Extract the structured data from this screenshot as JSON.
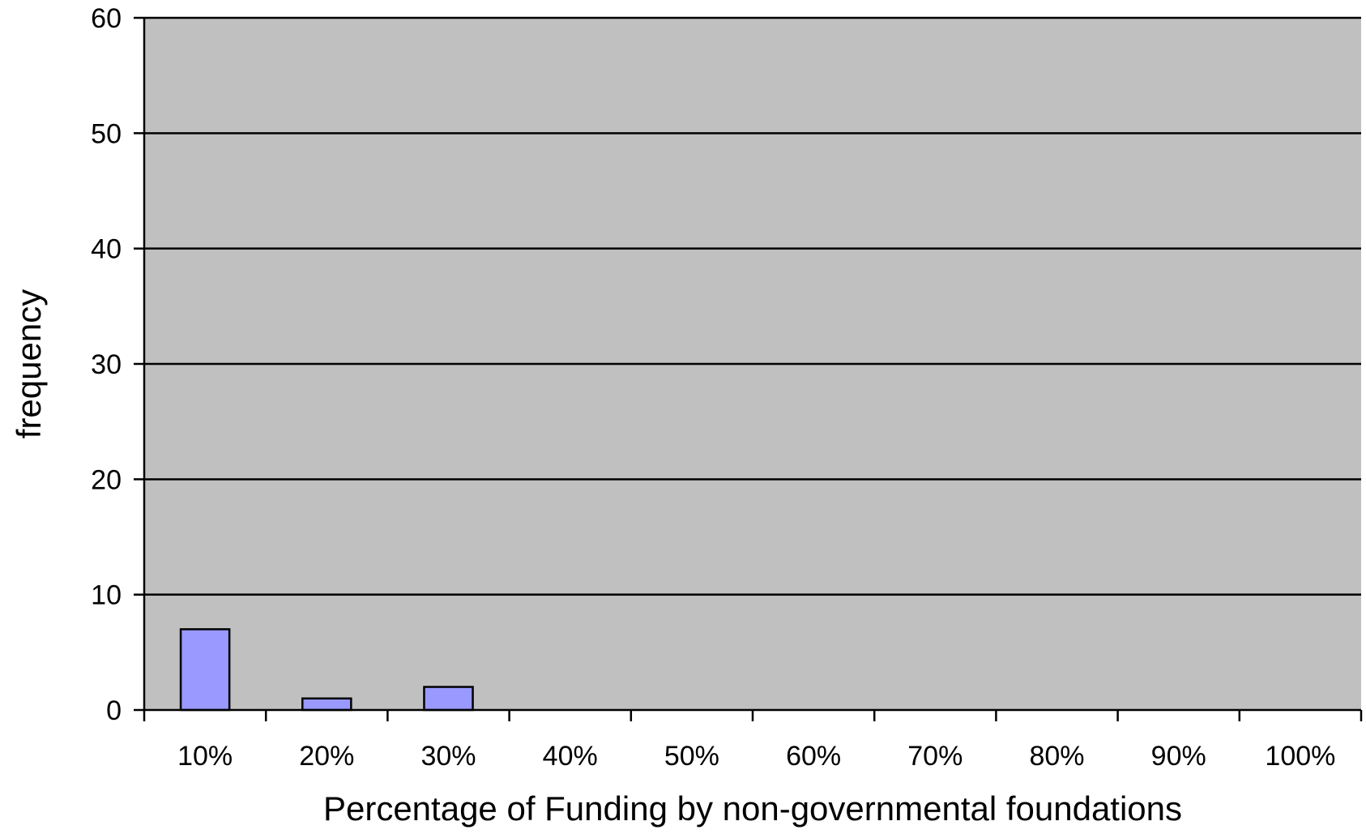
{
  "chart_data": {
    "type": "bar",
    "title": "",
    "xlabel": "Percentage of Funding by non-governmental foundations",
    "ylabel": "frequency",
    "categories": [
      "10%",
      "20%",
      "30%",
      "40%",
      "50%",
      "60%",
      "70%",
      "80%",
      "90%",
      "100%"
    ],
    "values": [
      7,
      1,
      2,
      0,
      0,
      0,
      0,
      0,
      0,
      0
    ],
    "ylim": [
      0,
      60
    ],
    "yticks": [
      0,
      10,
      20,
      30,
      40,
      50,
      60
    ],
    "grid": true,
    "legend": "none",
    "colors": {
      "plot_background": "#c0c0c0",
      "bar_fill": "#9999ff",
      "bar_stroke": "#000000",
      "gridline": "#000000"
    }
  }
}
